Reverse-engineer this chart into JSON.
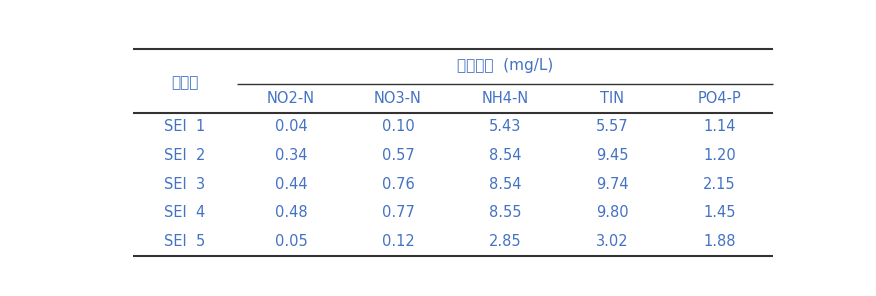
{
  "title": "영양성분  (mg/L)",
  "row_header": "배지명",
  "col_headers": [
    "NO2-N",
    "NO3-N",
    "NH4-N",
    "TIN",
    "PO4-P"
  ],
  "row_labels": [
    "SEI  1",
    "SEI  2",
    "SEI  3",
    "SEI  4",
    "SEI  5"
  ],
  "table_data": [
    [
      "0.04",
      "0.10",
      "5.43",
      "5.57",
      "1.14"
    ],
    [
      "0.34",
      "0.57",
      "8.54",
      "9.45",
      "1.20"
    ],
    [
      "0.44",
      "0.76",
      "8.54",
      "9.74",
      "2.15"
    ],
    [
      "0.48",
      "0.77",
      "8.55",
      "9.80",
      "1.45"
    ],
    [
      "0.05",
      "0.12",
      "2.85",
      "3.02",
      "1.88"
    ]
  ],
  "text_color": "#4472c4",
  "line_color": "#333333",
  "bg_color": "#ffffff",
  "font_size": 10.5,
  "title_font_size": 11
}
